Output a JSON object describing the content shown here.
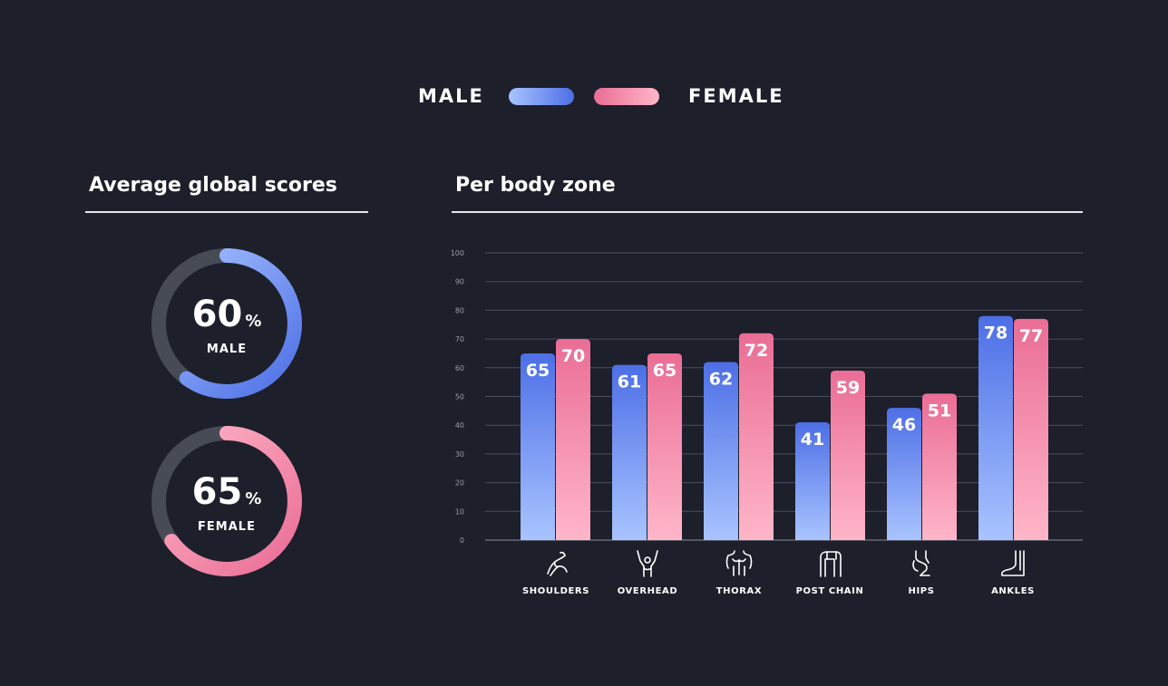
{
  "legend": {
    "male_label": "MALE",
    "female_label": "FEMALE"
  },
  "colors": {
    "background": "#1d1f2b",
    "male_light": "#a9c4ff",
    "male_dark": "#4d6fe6",
    "female_light": "#ffb6c9",
    "female_dark": "#ea6d95",
    "track": "#474b56"
  },
  "left_panel": {
    "title": "Average global scores",
    "male": {
      "value": "60",
      "unit": "%",
      "label": "MALE",
      "fraction": 0.6
    },
    "female": {
      "value": "65",
      "unit": "%",
      "label": "FEMALE",
      "fraction": 0.65
    }
  },
  "right_panel": {
    "title": "Per body zone"
  },
  "zones": [
    {
      "label": "SHOULDERS",
      "icon": "shoulders-icon"
    },
    {
      "label": "OVERHEAD",
      "icon": "overhead-icon"
    },
    {
      "label": "THORAX",
      "icon": "thorax-icon"
    },
    {
      "label": "POST CHAIN",
      "icon": "post-chain-icon"
    },
    {
      "label": "HIPS",
      "icon": "hips-icon"
    },
    {
      "label": "ANKLES",
      "icon": "ankles-icon"
    }
  ],
  "chart_data": {
    "type": "bar",
    "categories": [
      "SHOULDERS",
      "OVERHEAD",
      "THORAX",
      "POST CHAIN",
      "HIPS",
      "ANKLES"
    ],
    "series": [
      {
        "name": "MALE",
        "values": [
          65,
          61,
          62,
          41,
          46,
          78
        ]
      },
      {
        "name": "FEMALE",
        "values": [
          70,
          65,
          72,
          59,
          51,
          77
        ]
      }
    ],
    "yticks": [
      "0",
      "10",
      "20",
      "30",
      "40",
      "50",
      "60",
      "70",
      "80",
      "90",
      "100"
    ],
    "ylim": [
      0,
      100
    ],
    "grid": true,
    "legend_position": "top-center"
  }
}
